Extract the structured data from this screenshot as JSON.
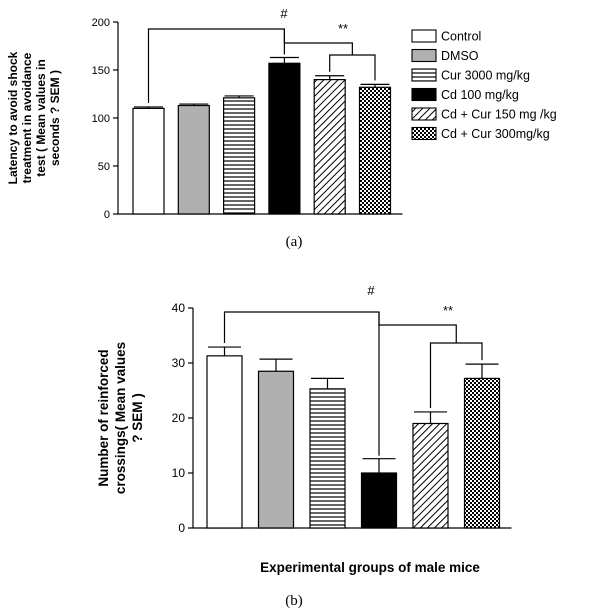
{
  "colors": {
    "ink": "#000000",
    "gray_fill": "#b0b0b0",
    "background": "#ffffff"
  },
  "chart_data": [
    {
      "type": "bar",
      "panel_label": "(a)",
      "ylabel_lines": [
        "Latency to avoid shock",
        "treatment in avoidance",
        "test  ( Mean values in",
        "seconds ? SEM )"
      ],
      "xlabel": "",
      "ylim": [
        0,
        200
      ],
      "yticks": [
        0,
        50,
        100,
        150,
        200
      ],
      "grid": false,
      "legend_position": "right",
      "categories": [
        "Control",
        "DMSO",
        "Cur 3000 mg/kg",
        "Cd 100 mg/kg",
        "Cd + Cur 150 mg /kg",
        "Cd + Cur 300mg/kg"
      ],
      "patterns": [
        "white",
        "gray",
        "hlines",
        "black",
        "diagonal",
        "crosshatch"
      ],
      "values": [
        110,
        113,
        121,
        157,
        140,
        132
      ],
      "errors": [
        1.5,
        1.5,
        2,
        6,
        4,
        3
      ],
      "annotations": [
        "#",
        "**"
      ]
    },
    {
      "type": "bar",
      "panel_label": "(b)",
      "ylabel_lines": [
        "Number of  reinforced",
        "crossings( Mean values",
        "? SEM )"
      ],
      "xlabel": "Experimental groups of male mice",
      "ylim": [
        0,
        40
      ],
      "yticks": [
        0,
        10,
        20,
        30,
        40
      ],
      "grid": false,
      "categories": [
        "Control",
        "DMSO",
        "Cur 3000 mg/kg",
        "Cd 100 mg/kg",
        "Cd + Cur 150 mg /kg",
        "Cd + Cur 300mg/kg"
      ],
      "patterns": [
        "white",
        "gray",
        "hlines",
        "black",
        "diagonal",
        "crosshatch"
      ],
      "values": [
        31.3,
        28.5,
        25.3,
        10,
        19,
        27.2
      ],
      "errors": [
        1.6,
        2.2,
        1.9,
        2.6,
        2.1,
        2.6
      ],
      "annotations": [
        "#",
        "**"
      ]
    }
  ]
}
